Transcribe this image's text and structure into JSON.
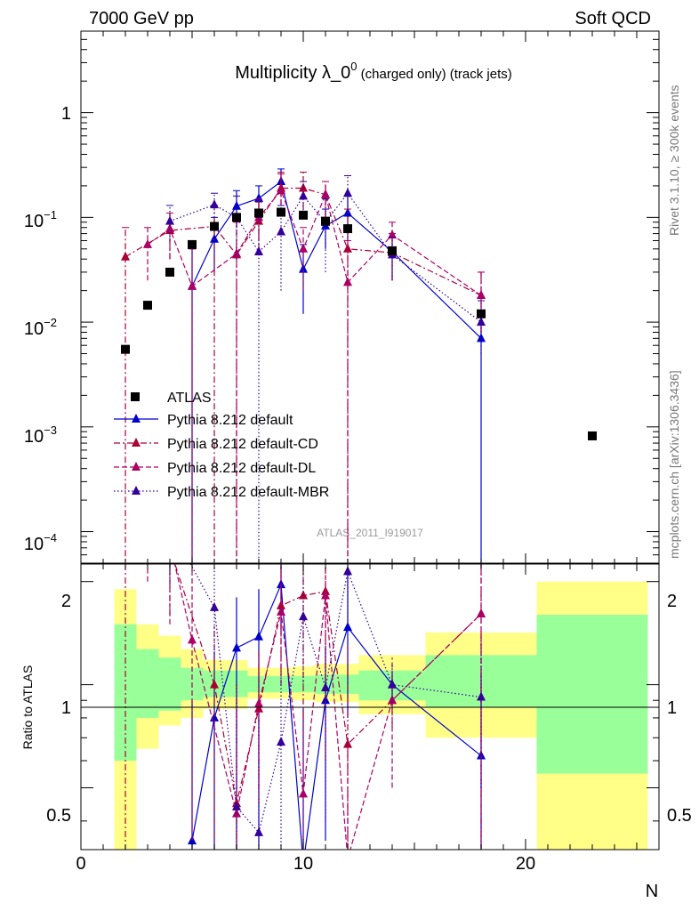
{
  "header": {
    "left": "7000 GeV pp",
    "right": "Soft QCD"
  },
  "side": {
    "rivet": "Rivet 3.1.10, ≥ 300k events",
    "source": "mcplots.cern.ch [arXiv:1306.3436]"
  },
  "chart_data": {
    "type": "scatter",
    "title_main": "Multiplicity λ_0",
    "title_sup": "0",
    "title_suffix": " (charged only) (track jets)",
    "watermark": "ATLAS_2011_I919017",
    "xlabel": "N",
    "ylabel_ratio": "Ratio to ATLAS",
    "xlim": [
      0,
      26
    ],
    "ylim": [
      5e-05,
      6
    ],
    "ratio_ylim": [
      0.33,
      2.25
    ],
    "x_ticks": [
      "0",
      "10",
      "20"
    ],
    "y_ticks": [
      {
        "base": "1",
        "exp": ""
      },
      {
        "base": "10",
        "exp": "−1"
      },
      {
        "base": "10",
        "exp": "−2"
      },
      {
        "base": "10",
        "exp": "−3"
      },
      {
        "base": "10",
        "exp": "−4"
      }
    ],
    "ratio_ticks": [
      "2",
      "1",
      "0.5"
    ],
    "data": {
      "name": "ATLAS",
      "x": [
        2,
        3,
        4,
        5,
        6,
        7,
        8,
        9,
        10,
        11,
        12,
        14,
        18,
        23
      ],
      "y": [
        0.0055,
        0.0145,
        0.03,
        0.055,
        0.082,
        0.1,
        0.11,
        0.112,
        0.105,
        0.092,
        0.078,
        0.048,
        0.012,
        0.00082
      ]
    },
    "bands": [
      {
        "x0": 1.5,
        "x1": 2.5,
        "inner": [
          0.6,
          1.5
        ],
        "outer": [
          0.33,
          1.9
        ]
      },
      {
        "x0": 2.5,
        "x1": 3.5,
        "inner": [
          0.8,
          1.27
        ],
        "outer": [
          0.65,
          1.5
        ]
      },
      {
        "x0": 3.5,
        "x1": 4.5,
        "inner": [
          0.84,
          1.2
        ],
        "outer": [
          0.76,
          1.39
        ]
      },
      {
        "x0": 4.5,
        "x1": 5.5,
        "inner": [
          0.9,
          1.12
        ],
        "outer": [
          0.8,
          1.27
        ]
      },
      {
        "x0": 5.5,
        "x1": 7.5,
        "inner": [
          0.92,
          1.1
        ],
        "outer": [
          0.85,
          1.18
        ]
      },
      {
        "x0": 7.5,
        "x1": 9.5,
        "inner": [
          0.95,
          1.06
        ],
        "outer": [
          0.91,
          1.12
        ]
      },
      {
        "x0": 9.5,
        "x1": 10.5,
        "inner": [
          0.95,
          1.06
        ],
        "outer": [
          0.9,
          1.13
        ]
      },
      {
        "x0": 10.5,
        "x1": 12.5,
        "inner": [
          0.94,
          1.07
        ],
        "outer": [
          0.89,
          1.15
        ]
      },
      {
        "x0": 12.5,
        "x1": 15.5,
        "inner": [
          0.9,
          1.1
        ],
        "outer": [
          0.82,
          1.22
        ]
      },
      {
        "x0": 15.5,
        "x1": 20.5,
        "inner": [
          0.86,
          1.22
        ],
        "outer": [
          0.7,
          1.42
        ]
      },
      {
        "x0": 20.5,
        "x1": 25.5,
        "inner": [
          0.55,
          1.6
        ],
        "outer": [
          0.33,
          2.0
        ]
      }
    ],
    "series": [
      {
        "name": "Pythia 8.212 default",
        "color": "#0000cc",
        "dash": "",
        "marker": "tri",
        "x": [
          5,
          6,
          7,
          8,
          9,
          10,
          11,
          12,
          14,
          18
        ],
        "y": [
          0.022,
          0.062,
          0.128,
          0.152,
          0.22,
          0.032,
          0.083,
          0.11,
          0.047,
          0.007
        ],
        "lo": [
          1e-05,
          0.03,
          0.08,
          0.1,
          0.16,
          0.012,
          0.05,
          0.06,
          0.025,
          1e-05
        ],
        "hi": [
          0.05,
          0.1,
          0.18,
          0.2,
          0.29,
          0.055,
          0.12,
          0.16,
          0.07,
          0.012
        ],
        "ratio": [
          0.35,
          0.8,
          1.28,
          1.38,
          1.96,
          0.3,
          0.9,
          1.47,
          1.0,
          0.62
        ],
        "ratio_lo": [
          0.3,
          0.3,
          0.3,
          0.3,
          1.4,
          0.3,
          0.35,
          0.8,
          0.9,
          0.3
        ],
        "ratio_hi": [
          0.9,
          1.25,
          1.8,
          1.9,
          2.3,
          0.85,
          1.3,
          2.1,
          1.08,
          1.08
        ]
      },
      {
        "name": "Pythia 8.212 default-CD",
        "color": "#aa0033",
        "dash": "7,3,2,3",
        "marker": "tri",
        "x": [
          2,
          4,
          6,
          7,
          8,
          9,
          10,
          11,
          12,
          14,
          18
        ],
        "y": [
          0.042,
          0.075,
          0.082,
          0.044,
          0.092,
          0.19,
          0.19,
          0.165,
          0.05,
          0.046,
          0.018
        ],
        "lo": [
          1e-05,
          0.04,
          1e-05,
          1e-05,
          0.05,
          0.13,
          0.12,
          0.1,
          1e-05,
          0.025,
          0.008
        ],
        "hi": [
          0.08,
          0.11,
          0.13,
          0.1,
          0.14,
          0.27,
          0.27,
          0.22,
          0.12,
          0.07,
          0.03
        ],
        "ratio": [
          7.5,
          2.5,
          1.0,
          0.45,
          0.85,
          1.7,
          1.82,
          1.87,
          0.67,
          0.9,
          1.61
        ],
        "ratio_lo": [
          0.3,
          1.6,
          0.3,
          0.3,
          0.45,
          1.1,
          0.8,
          0.6,
          0.3,
          0.75,
          0.3
        ],
        "ratio_hi": [
          10,
          3.5,
          1.5,
          1.0,
          1.25,
          2.3,
          2.4,
          2.4,
          1.3,
          1.06,
          2.3
        ]
      },
      {
        "name": "Pythia 8.212 default-DL",
        "color": "#aa0066",
        "dash": "6,3",
        "marker": "tri",
        "x": [
          3,
          4,
          5,
          7,
          8,
          9,
          10,
          11,
          12,
          14,
          18
        ],
        "y": [
          0.055,
          0.078,
          0.022,
          0.045,
          0.1,
          0.18,
          0.05,
          0.165,
          0.024,
          0.068,
          0.018
        ],
        "lo": [
          0.025,
          0.04,
          1e-05,
          1e-05,
          0.06,
          0.11,
          0.02,
          0.09,
          1e-05,
          0.04,
          0.008
        ],
        "hi": [
          0.08,
          0.11,
          0.05,
          0.09,
          0.15,
          0.26,
          0.08,
          0.22,
          0.06,
          0.09,
          0.03
        ],
        "ratio": [
          3.8,
          2.6,
          1.35,
          0.42,
          0.88,
          1.63,
          0.48,
          1.82,
          0.31,
          0.9,
          1.61
        ],
        "ratio_lo": [
          2.0,
          1.5,
          0.3,
          0.3,
          0.5,
          1.0,
          0.3,
          0.9,
          0.3,
          0.5,
          0.3
        ],
        "ratio_hi": [
          5.0,
          3.6,
          2.4,
          0.9,
          1.25,
          2.3,
          0.8,
          2.4,
          0.7,
          1.2,
          2.3
        ]
      },
      {
        "name": "Pythia 8.212 default-MBR",
        "color": "#330099",
        "dash": "1.5,2.5",
        "marker": "tri",
        "x": [
          4,
          6,
          7,
          8,
          9,
          10,
          11,
          12,
          14,
          18
        ],
        "y": [
          0.092,
          0.132,
          0.1,
          0.047,
          0.073,
          0.16,
          0.09,
          0.17,
          0.044,
          0.01
        ],
        "lo": [
          0.06,
          0.1,
          0.04,
          1e-05,
          0.02,
          0.1,
          0.03,
          0.1,
          0.025,
          0.005
        ],
        "hi": [
          0.13,
          0.17,
          0.16,
          0.1,
          0.13,
          0.22,
          0.15,
          0.25,
          0.065,
          0.016
        ],
        "ratio": [
          2.9,
          1.68,
          0.44,
          0.37,
          0.68,
          1.58,
          0.98,
          2.14,
          1.0,
          0.92
        ],
        "ratio_lo": [
          2.0,
          1.2,
          0.3,
          0.3,
          0.3,
          1.0,
          0.4,
          1.5,
          0.85,
          0.5
        ],
        "ratio_hi": [
          3.5,
          2.2,
          1.0,
          0.8,
          1.1,
          2.3,
          1.3,
          2.3,
          1.15,
          1.4
        ]
      }
    ]
  }
}
